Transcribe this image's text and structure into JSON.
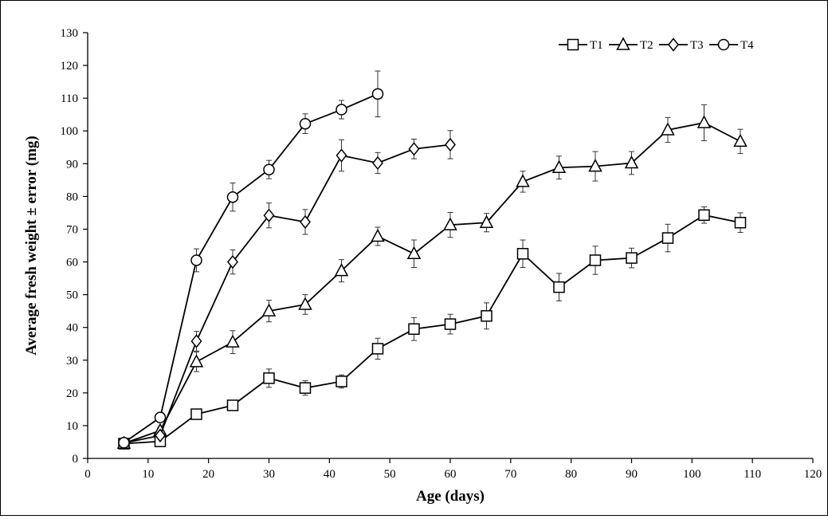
{
  "chart_data": {
    "type": "line",
    "title": "",
    "xlabel": "Age (days)",
    "ylabel": "Average fresh weight ± error (mg)",
    "xlim": [
      0,
      120
    ],
    "ylim": [
      0,
      130
    ],
    "x_ticks": [
      0,
      10,
      20,
      30,
      40,
      50,
      60,
      70,
      80,
      90,
      100,
      110,
      120
    ],
    "y_ticks": [
      0,
      10,
      20,
      30,
      40,
      50,
      60,
      70,
      80,
      90,
      100,
      110,
      120,
      130
    ],
    "grid": false,
    "legend_position": "top-right",
    "series": [
      {
        "name": "T1",
        "marker": "square",
        "points": [
          {
            "x": 6,
            "y": 4.5,
            "err": 0.8
          },
          {
            "x": 12,
            "y": 5.2,
            "err": 0.8
          },
          {
            "x": 18,
            "y": 13.5,
            "err": 1.2
          },
          {
            "x": 24,
            "y": 16.2,
            "err": 1.2
          },
          {
            "x": 30,
            "y": 24.5,
            "err": 2.8
          },
          {
            "x": 36,
            "y": 21.5,
            "err": 2.2
          },
          {
            "x": 42,
            "y": 23.5,
            "err": 2.0
          },
          {
            "x": 48,
            "y": 33.5,
            "err": 3.2
          },
          {
            "x": 54,
            "y": 39.5,
            "err": 3.5
          },
          {
            "x": 60,
            "y": 41.0,
            "err": 3.0
          },
          {
            "x": 66,
            "y": 43.5,
            "err": 4.0
          },
          {
            "x": 72,
            "y": 62.5,
            "err": 4.2
          },
          {
            "x": 78,
            "y": 52.3,
            "err": 4.2
          },
          {
            "x": 84,
            "y": 60.5,
            "err": 4.3
          },
          {
            "x": 90,
            "y": 61.2,
            "err": 3.0
          },
          {
            "x": 96,
            "y": 67.3,
            "err": 4.2
          },
          {
            "x": 102,
            "y": 74.3,
            "err": 2.5
          },
          {
            "x": 108,
            "y": 72.0,
            "err": 3.0
          }
        ]
      },
      {
        "name": "T2",
        "marker": "triangle",
        "points": [
          {
            "x": 6,
            "y": 4.6,
            "err": 0.8
          },
          {
            "x": 12,
            "y": 8.5,
            "err": 1.0
          },
          {
            "x": 18,
            "y": 29.5,
            "err": 3.0
          },
          {
            "x": 24,
            "y": 35.5,
            "err": 3.5
          },
          {
            "x": 30,
            "y": 45.0,
            "err": 3.3
          },
          {
            "x": 36,
            "y": 47.0,
            "err": 3.0
          },
          {
            "x": 42,
            "y": 57.3,
            "err": 3.4
          },
          {
            "x": 48,
            "y": 67.8,
            "err": 2.8
          },
          {
            "x": 54,
            "y": 62.5,
            "err": 4.2
          },
          {
            "x": 60,
            "y": 71.3,
            "err": 3.8
          },
          {
            "x": 66,
            "y": 72.0,
            "err": 2.8
          },
          {
            "x": 72,
            "y": 84.5,
            "err": 3.2
          },
          {
            "x": 78,
            "y": 88.8,
            "err": 3.5
          },
          {
            "x": 84,
            "y": 89.2,
            "err": 4.5
          },
          {
            "x": 90,
            "y": 90.2,
            "err": 3.5
          },
          {
            "x": 96,
            "y": 100.3,
            "err": 3.8
          },
          {
            "x": 102,
            "y": 102.5,
            "err": 5.5
          },
          {
            "x": 108,
            "y": 96.8,
            "err": 3.7
          }
        ]
      },
      {
        "name": "T3",
        "marker": "diamond",
        "points": [
          {
            "x": 6,
            "y": 4.7,
            "err": 0.8
          },
          {
            "x": 12,
            "y": 7.0,
            "err": 1.0
          },
          {
            "x": 18,
            "y": 35.8,
            "err": 3.0
          },
          {
            "x": 24,
            "y": 60.0,
            "err": 3.7
          },
          {
            "x": 30,
            "y": 74.2,
            "err": 3.8
          },
          {
            "x": 36,
            "y": 72.2,
            "err": 3.8
          },
          {
            "x": 42,
            "y": 92.5,
            "err": 4.8
          },
          {
            "x": 48,
            "y": 90.2,
            "err": 3.2
          },
          {
            "x": 54,
            "y": 94.5,
            "err": 3.0
          },
          {
            "x": 60,
            "y": 95.8,
            "err": 4.3
          }
        ]
      },
      {
        "name": "T4",
        "marker": "circle",
        "points": [
          {
            "x": 6,
            "y": 4.8,
            "err": 0.8
          },
          {
            "x": 12,
            "y": 12.5,
            "err": 1.5
          },
          {
            "x": 18,
            "y": 60.5,
            "err": 3.5
          },
          {
            "x": 24,
            "y": 79.8,
            "err": 4.3
          },
          {
            "x": 30,
            "y": 88.2,
            "err": 2.8
          },
          {
            "x": 36,
            "y": 102.2,
            "err": 3.0
          },
          {
            "x": 42,
            "y": 106.5,
            "err": 2.8
          },
          {
            "x": 48,
            "y": 111.3,
            "err": 7.0
          }
        ]
      }
    ]
  }
}
